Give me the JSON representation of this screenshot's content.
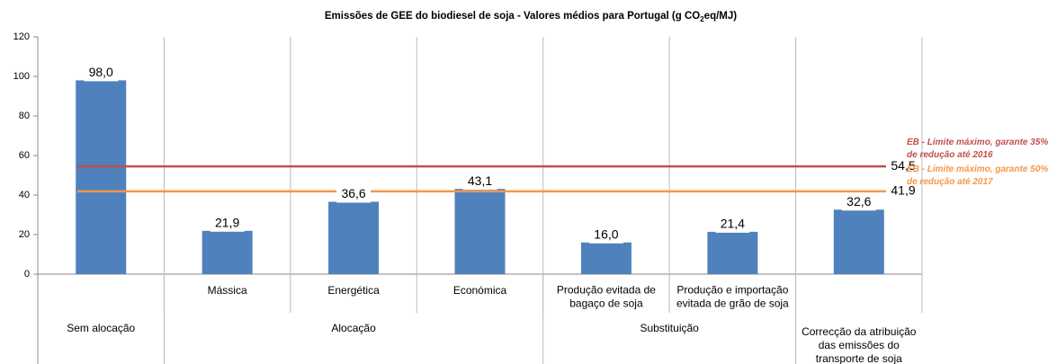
{
  "chart_data": {
    "type": "bar",
    "title": [
      "Emissões de GEE do biodiesel de soja - Valores médios para Portugal (g CO",
      "2",
      "eq/MJ)"
    ],
    "categories": [
      null,
      [
        "Mássica"
      ],
      [
        "Energética"
      ],
      [
        "Económica"
      ],
      [
        "Produção evitada de",
        "bagaço de soja"
      ],
      [
        "Produção e importação",
        "evitada de grão de soja"
      ],
      null
    ],
    "groups": [
      {
        "label": [
          "Sem alocação"
        ],
        "span": 1
      },
      {
        "label": [
          "Alocação"
        ],
        "span": 3
      },
      {
        "label": [
          "Substituição"
        ],
        "span": 2
      },
      {
        "label": [
          "Correcção da atribuição",
          "das emissões do",
          "transporte de soja"
        ],
        "span": 1
      }
    ],
    "values": [
      98.0,
      21.9,
      36.6,
      43.1,
      16.0,
      21.4,
      32.6
    ],
    "value_labels": [
      "98,0",
      "21,9",
      "36,6",
      "43,1",
      "16,0",
      "21,4",
      "32,6"
    ],
    "color": "#4f81bd",
    "lines": [
      {
        "name": [
          "EB - Limite máximo, garante 35%",
          "de redução até 2016"
        ],
        "value": 54.5,
        "value_label": "54,5",
        "color": "#c0504d"
      },
      {
        "name": [
          "EB - Limite máximo, garante 50%",
          "de redução até 2017"
        ],
        "value": 41.9,
        "value_label": "41,9",
        "color": "#f79646"
      }
    ],
    "ylim": [
      0,
      120
    ],
    "yticks": [
      0,
      20,
      40,
      60,
      80,
      100,
      120
    ]
  }
}
